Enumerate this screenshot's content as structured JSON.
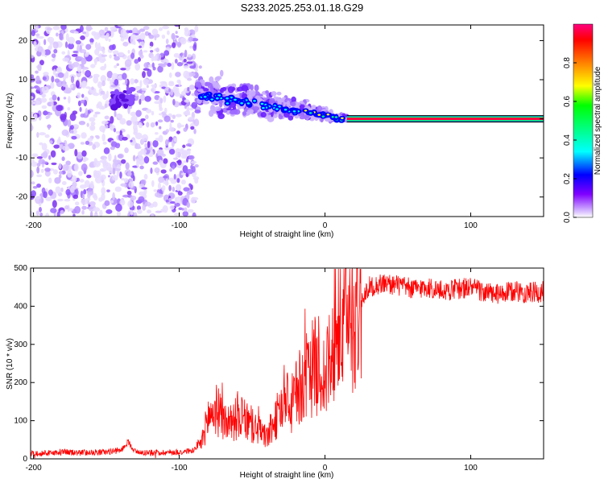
{
  "title": "S233.2025.253.01.18.G29",
  "chart_data": [
    {
      "type": "heatmap",
      "name": "spectrogram",
      "xlabel": "Height of straight line (km)",
      "ylabel": "Frequency (Hz)",
      "xlim": [
        -202,
        150
      ],
      "ylim": [
        -25,
        24
      ],
      "xticks": [
        -200,
        -100,
        0,
        100
      ],
      "yticks": [
        -20,
        -10,
        0,
        10,
        20
      ],
      "colorbar": {
        "label": "Normalized spectral amplitude",
        "range": [
          0,
          1
        ],
        "ticks": [
          0.0,
          0.2,
          0.4,
          0.6,
          0.8
        ],
        "tick_labels": [
          "0.0",
          "0.2",
          "0.4",
          "0.6",
          "0.8"
        ],
        "colors": [
          "#ffffff",
          "#8000ff",
          "#0000ff",
          "#00ffff",
          "#00ff00",
          "#ffff00",
          "#ff8000",
          "#ff0000",
          "#ff0080"
        ]
      },
      "features": {
        "noise_region_km": [
          -202,
          -88
        ],
        "scatter_band_km": [
          -88,
          15
        ],
        "steady_tone_km": [
          15,
          150
        ],
        "steady_tone_freq_hz": 0.0
      }
    },
    {
      "type": "line",
      "name": "snr",
      "xlabel": "Height of straight line (km)",
      "ylabel": "SNR (10 * v/v)",
      "xlim": [
        -202,
        150
      ],
      "ylim": [
        0,
        500
      ],
      "xticks": [
        -200,
        -100,
        0,
        100
      ],
      "yticks": [
        0,
        100,
        200,
        300,
        400,
        500
      ],
      "color": "#ff0000",
      "series": [
        {
          "name": "SNR",
          "x": [
            -202,
            -190,
            -180,
            -170,
            -160,
            -150,
            -140,
            -135,
            -130,
            -120,
            -110,
            -100,
            -90,
            -85,
            -80,
            -75,
            -70,
            -65,
            -60,
            -55,
            -50,
            -45,
            -40,
            -35,
            -30,
            -25,
            -20,
            -15,
            -10,
            -5,
            0,
            5,
            10,
            15,
            20,
            25,
            30,
            40,
            50,
            60,
            70,
            80,
            90,
            100,
            110,
            120,
            130,
            140,
            150
          ],
          "values": [
            15,
            15,
            18,
            16,
            17,
            18,
            22,
            45,
            18,
            16,
            17,
            18,
            22,
            40,
            110,
            130,
            105,
            90,
            110,
            100,
            85,
            75,
            55,
            90,
            140,
            120,
            170,
            200,
            230,
            250,
            210,
            270,
            330,
            360,
            380,
            420,
            450,
            460,
            455,
            445,
            450,
            440,
            445,
            450,
            435,
            430,
            440,
            435,
            438
          ]
        }
      ]
    }
  ]
}
